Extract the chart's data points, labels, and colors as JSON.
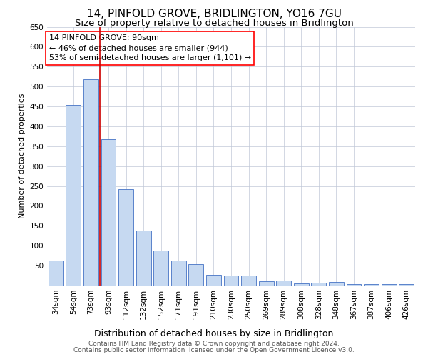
{
  "title": "14, PINFOLD GROVE, BRIDLINGTON, YO16 7GU",
  "subtitle": "Size of property relative to detached houses in Bridlington",
  "xlabel": "Distribution of detached houses by size in Bridlington",
  "ylabel": "Number of detached properties",
  "footer1": "Contains HM Land Registry data © Crown copyright and database right 2024.",
  "footer2": "Contains public sector information licensed under the Open Government Licence v3.0.",
  "annotation_line1": "14 PINFOLD GROVE: 90sqm",
  "annotation_line2": "← 46% of detached houses are smaller (944)",
  "annotation_line3": "53% of semi-detached houses are larger (1,101) →",
  "categories": [
    "34sqm",
    "54sqm",
    "73sqm",
    "93sqm",
    "112sqm",
    "132sqm",
    "152sqm",
    "171sqm",
    "191sqm",
    "210sqm",
    "230sqm",
    "250sqm",
    "269sqm",
    "289sqm",
    "308sqm",
    "328sqm",
    "348sqm",
    "367sqm",
    "387sqm",
    "406sqm",
    "426sqm"
  ],
  "values": [
    62,
    453,
    518,
    368,
    242,
    138,
    88,
    62,
    54,
    27,
    26,
    26,
    11,
    12,
    6,
    7,
    9,
    3,
    4,
    4,
    3
  ],
  "bar_color": "#c6d9f1",
  "bar_edge_color": "#4472c4",
  "vline_color": "#cc0000",
  "bg_color": "#ffffff",
  "grid_color": "#c0c8d8",
  "ylim": [
    0,
    650
  ],
  "yticks": [
    0,
    50,
    100,
    150,
    200,
    250,
    300,
    350,
    400,
    450,
    500,
    550,
    600,
    650
  ],
  "title_fontsize": 11,
  "subtitle_fontsize": 9.5,
  "xlabel_fontsize": 9,
  "ylabel_fontsize": 8,
  "tick_fontsize": 7.5,
  "annotation_fontsize": 8,
  "footer_fontsize": 6.5
}
